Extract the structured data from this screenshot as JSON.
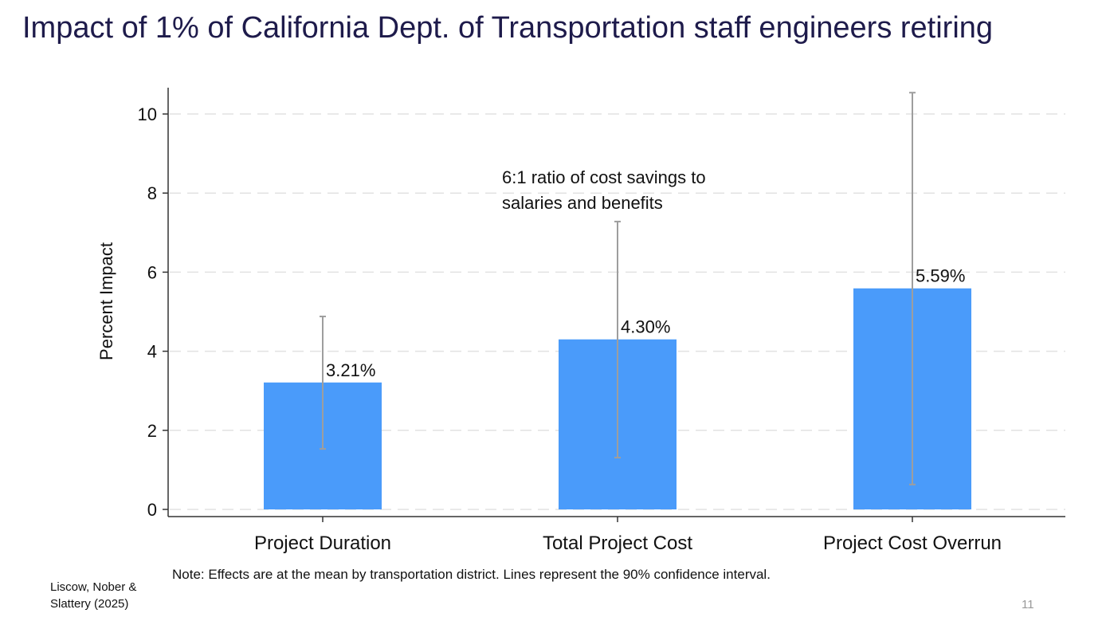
{
  "slide": {
    "title": "Impact of 1% of California Dept. of Transportation staff engineers retiring",
    "note": "Note: Effects are at the mean by transportation district. Lines represent the 90% confidence interval.",
    "source": "Liscow, Nober & Slattery (2025)",
    "page_number": "11"
  },
  "chart_data": {
    "type": "bar",
    "title": "",
    "xlabel": "",
    "ylabel": "Percent Impact",
    "ylim": [
      0,
      10.6
    ],
    "yticks": [
      0,
      2,
      4,
      6,
      8,
      10
    ],
    "grid": true,
    "categories": [
      "Project Duration",
      "Total Project Cost",
      "Project Cost Overrun"
    ],
    "values": [
      3.21,
      4.3,
      5.59
    ],
    "data_labels": [
      "3.21%",
      "4.30%",
      "5.59%"
    ],
    "ci_90": [
      [
        1.53,
        4.88
      ],
      [
        1.31,
        7.28
      ],
      [
        0.63,
        10.54
      ]
    ],
    "annotation": [
      "6:1 ratio of cost savings to",
      "salaries and benefits"
    ],
    "colors": {
      "bar": "#4a9bfa",
      "error_bar": "#9e9e9e",
      "grid": "#e2e2e2",
      "axis": "#333333"
    }
  }
}
